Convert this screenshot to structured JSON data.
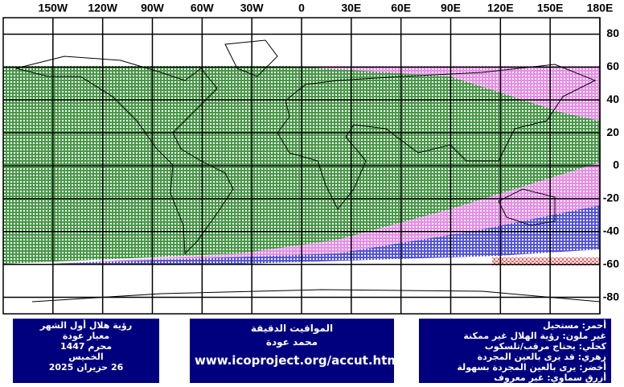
{
  "map": {
    "xlim": [
      -180,
      180
    ],
    "ylim": [
      -90,
      90
    ],
    "xticks": [
      {
        "value": -150,
        "label": "150W"
      },
      {
        "value": -120,
        "label": "120W"
      },
      {
        "value": -90,
        "label": "90W"
      },
      {
        "value": -60,
        "label": "60W"
      },
      {
        "value": -30,
        "label": "30W"
      },
      0,
      {
        "value": 30,
        "label": "30E"
      },
      {
        "value": 60,
        "label": "60E"
      },
      {
        "value": 90,
        "label": "90E"
      },
      {
        "value": 120,
        "label": "120E"
      },
      {
        "value": 150,
        "label": "150E"
      },
      {
        "value": 180,
        "label": "180E"
      }
    ],
    "yticks": [
      80,
      60,
      40,
      20,
      0,
      -20,
      -40,
      -60,
      -80
    ]
  },
  "info_boxes": [
    {
      "lines": [
        "رؤية هلال أول الشهر",
        "معيار عودة",
        "محرم 1447",
        "الخميس",
        "26 حزيران 2025"
      ]
    },
    {
      "lines": [
        "المواقيت الدقيقة",
        "محمد عودة",
        "www.icoproject.org/accut.html"
      ]
    },
    {
      "lines": [
        "أحمر: مستحيل",
        "غير ملون: رؤية الهلال غير ممكنة",
        "كحلي: يحتاج مرقب/تلسكوب",
        "زهري: قد يرى بالعين المجردة",
        "أخضر: يرى بالعين المجردة بسهولة",
        "أزرق سماوي: غير معروف"
      ]
    }
  ]
}
